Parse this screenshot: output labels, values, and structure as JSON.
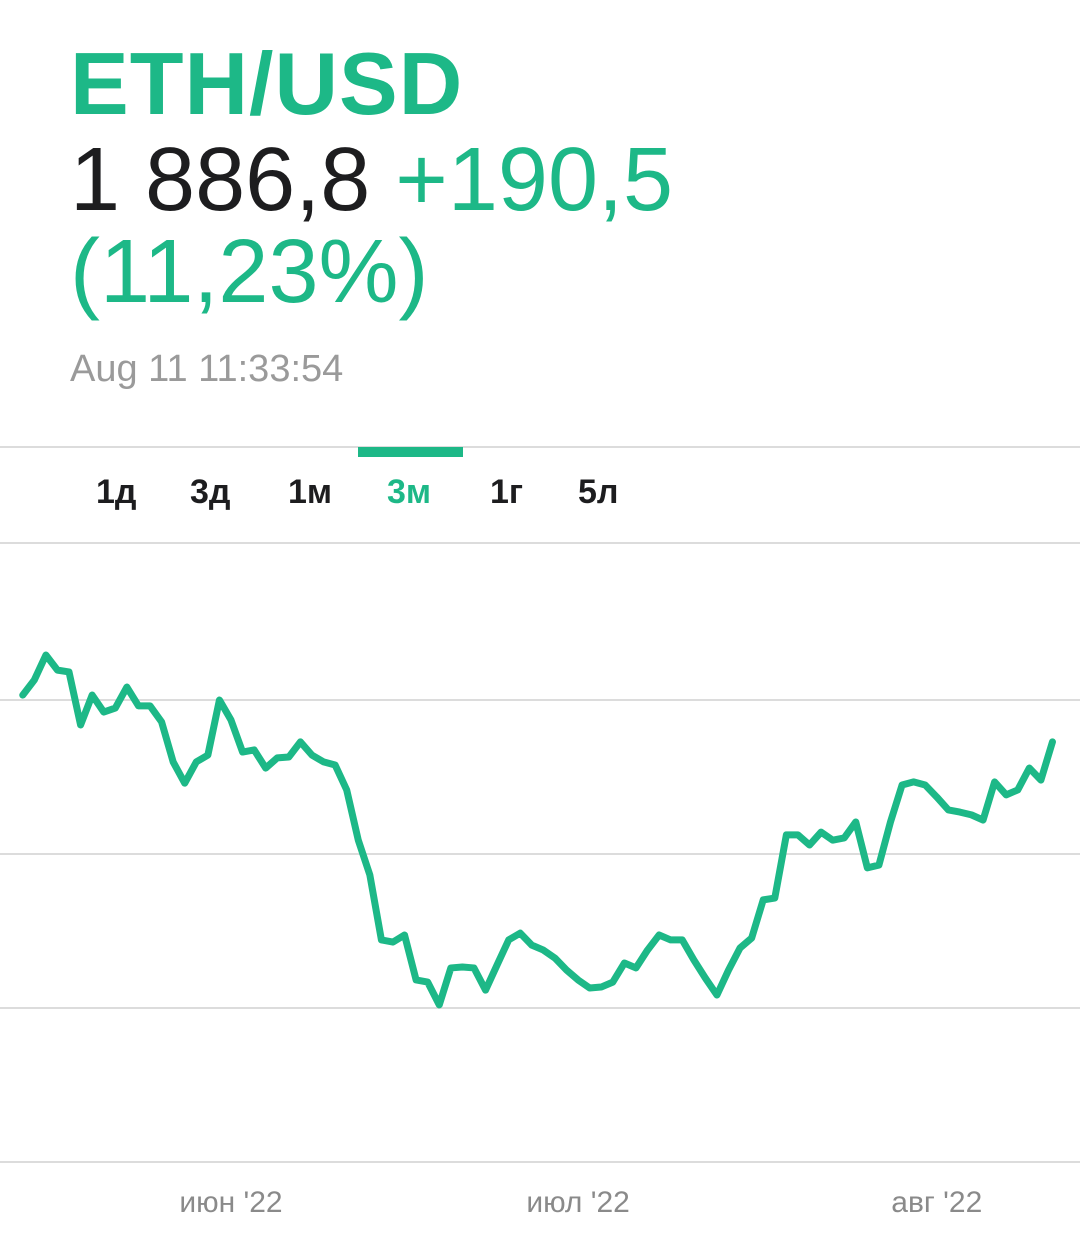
{
  "header": {
    "ticker": "ETH/USD",
    "price": "1 886,8",
    "change": "+190,5",
    "change_pct": "(11,23%)",
    "timestamp": "Aug 11 11:33:54"
  },
  "tabs": [
    {
      "label": "1д"
    },
    {
      "label": "3д"
    },
    {
      "label": "1м"
    },
    {
      "label": "3м",
      "active": true
    },
    {
      "label": "1г"
    },
    {
      "label": "5л"
    }
  ],
  "colors": {
    "accent": "#1db887",
    "text": "#1d1d1f",
    "muted": "#9a9a9a",
    "grid": "#dcdcdc"
  },
  "chart_data": {
    "type": "line",
    "title": "",
    "xlabel": "",
    "ylabel": "",
    "ylim": [
      350,
      2450
    ],
    "grid": true,
    "y_gridlines": [
      2000,
      1500,
      1000,
      500
    ],
    "x_ticks": [
      {
        "date": "2022-06-01",
        "label": "июн '22"
      },
      {
        "date": "2022-07-01",
        "label": "июл '22"
      },
      {
        "date": "2022-08-01",
        "label": "авг '22"
      }
    ],
    "start_date": "2022-05-14",
    "series": [
      {
        "color": "#1db887",
        "values": [
          2016,
          2065,
          2146,
          2097,
          2091,
          1919,
          2016,
          1961,
          1974,
          2042,
          1981,
          1981,
          1929,
          1799,
          1730,
          1799,
          1821,
          2000,
          1935,
          1831,
          1838,
          1779,
          1812,
          1815,
          1864,
          1821,
          1799,
          1789,
          1708,
          1545,
          1432,
          1221,
          1214,
          1237,
          1091,
          1084,
          1010,
          1130,
          1133,
          1130,
          1058,
          1140,
          1221,
          1243,
          1204,
          1188,
          1162,
          1123,
          1091,
          1065,
          1068,
          1084,
          1146,
          1130,
          1188,
          1237,
          1221,
          1221,
          1156,
          1097,
          1042,
          1123,
          1195,
          1227,
          1351,
          1357,
          1562,
          1562,
          1529,
          1571,
          1545,
          1552,
          1604,
          1455,
          1464,
          1604,
          1724,
          1734,
          1724,
          1685,
          1643,
          1636,
          1627,
          1610,
          1734,
          1692,
          1708,
          1779,
          1740,
          1864
        ]
      }
    ]
  }
}
